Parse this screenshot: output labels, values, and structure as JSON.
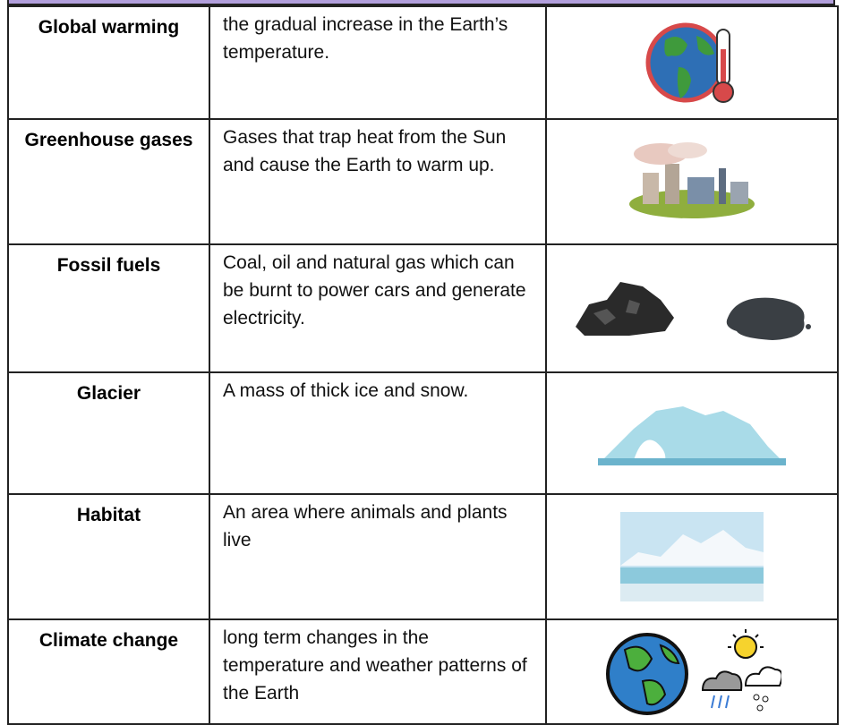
{
  "table": {
    "rows": [
      {
        "term": "Global warming",
        "definition": "the gradual increase in the Earth’s temperature."
      },
      {
        "term": "Greenhouse gases",
        "definition": "Gases that trap heat from the Sun and cause the Earth to warm up."
      },
      {
        "term": "Fossil fuels",
        "definition": "Coal, oil and natural gas which can be burnt to power cars and generate electricity."
      },
      {
        "term": "Glacier",
        "definition": "A mass of thick ice and snow."
      },
      {
        "term": "Habitat",
        "definition": "An area where animals and plants live"
      },
      {
        "term": "Climate change",
        "definition": "long term changes in the temperature and weather patterns of the Earth"
      }
    ]
  }
}
